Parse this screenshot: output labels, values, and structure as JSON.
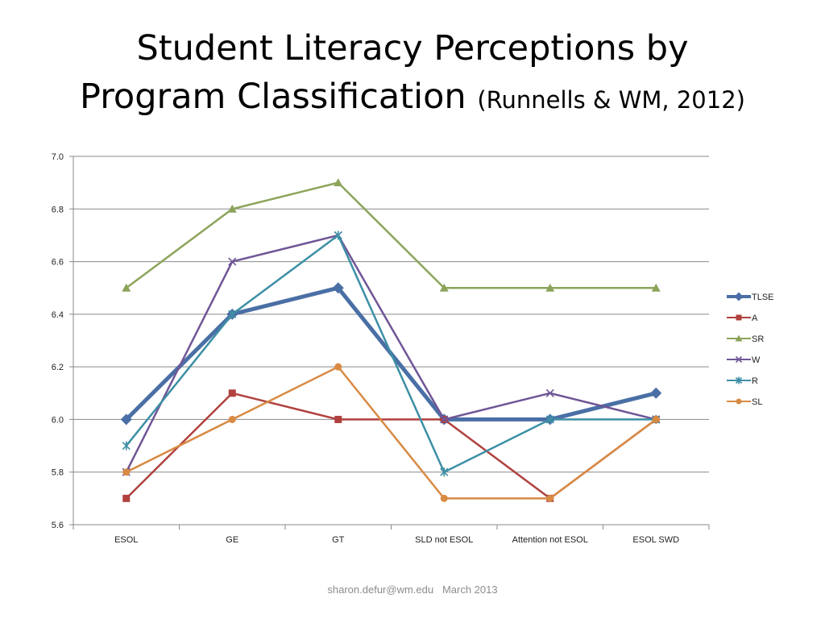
{
  "slide": {
    "title_line1": "Student Literacy Perceptions by",
    "title_line2": "Program Classification",
    "title_citation": "(Runnells & WM, 2012)"
  },
  "footer": {
    "email": "sharon.defur@wm.edu",
    "date": "March 2013"
  },
  "chart_data": {
    "type": "line",
    "title": "",
    "xlabel": "",
    "ylabel": "",
    "ylim": [
      5.6,
      7.0
    ],
    "ytick_step": 0.2,
    "ytick_labels": [
      "5.6",
      "5.8",
      "6.0",
      "6.2",
      "6.4",
      "6.6",
      "6.8",
      "7.0"
    ],
    "grid": true,
    "legend_position": "right",
    "categories": [
      "ESOL",
      "GE",
      "GT",
      "SLD not ESOL",
      "Attention not ESOL",
      "ESOL SWD"
    ],
    "series": [
      {
        "name": "TLSE",
        "color": "#4a6fa5",
        "marker": "diamond",
        "values": [
          6.0,
          6.4,
          6.5,
          6.0,
          6.0,
          6.1
        ]
      },
      {
        "name": "A",
        "color": "#b0413e",
        "marker": "square",
        "values": [
          5.7,
          6.1,
          6.0,
          6.0,
          5.7,
          6.0
        ]
      },
      {
        "name": "SR",
        "color": "#8ca45a",
        "marker": "triangle",
        "values": [
          6.5,
          6.8,
          6.9,
          6.5,
          6.5,
          6.5
        ]
      },
      {
        "name": "W",
        "color": "#6f5596",
        "marker": "x",
        "values": [
          5.8,
          6.6,
          6.7,
          6.0,
          6.1,
          6.0
        ]
      },
      {
        "name": "R",
        "color": "#3d8fa5",
        "marker": "star",
        "values": [
          5.9,
          6.4,
          6.7,
          5.8,
          6.0,
          6.0
        ]
      },
      {
        "name": "SL",
        "color": "#d88a43",
        "marker": "circle",
        "values": [
          5.8,
          6.0,
          6.2,
          5.7,
          5.7,
          6.0
        ]
      }
    ]
  }
}
